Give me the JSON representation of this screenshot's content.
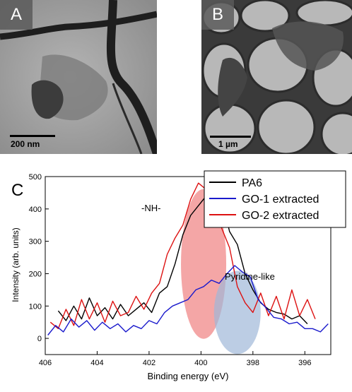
{
  "panels": {
    "a": {
      "label": "A",
      "scale_text": "200 nm"
    },
    "b": {
      "label": "B",
      "scale_text": "1 µm"
    },
    "c": {
      "label": "C"
    }
  },
  "chart_data": {
    "type": "line",
    "xlabel": "Binding energy (eV)",
    "ylabel": "Intensity (arb. units)",
    "xlim": [
      406,
      395
    ],
    "ylim": [
      -50,
      500
    ],
    "x_ticks": [
      406,
      404,
      402,
      400,
      398,
      396
    ],
    "y_ticks": [
      0,
      100,
      200,
      300,
      400,
      500
    ],
    "legend_position": "top-right",
    "annotations": [
      "-NH-",
      "Pyridine-like"
    ],
    "series": [
      {
        "name": "PA6",
        "color": "#000000",
        "x": [
          405.5,
          405.2,
          404.9,
          404.6,
          404.3,
          404.0,
          403.7,
          403.4,
          403.1,
          402.8,
          402.5,
          402.2,
          401.9,
          401.6,
          401.3,
          401.0,
          400.7,
          400.4,
          400.1,
          399.8,
          399.5,
          399.2,
          398.9,
          398.6,
          398.3,
          398.0,
          397.7,
          397.4,
          397.1,
          396.8,
          396.5,
          396.2,
          395.9
        ],
        "values": [
          85,
          55,
          100,
          60,
          125,
          70,
          95,
          60,
          105,
          70,
          90,
          110,
          80,
          140,
          160,
          230,
          320,
          380,
          410,
          440,
          420,
          430,
          330,
          290,
          200,
          150,
          110,
          90,
          80,
          75,
          60,
          70,
          45
        ]
      },
      {
        "name": "GO-1 extracted",
        "color": "#1a1acc",
        "x": [
          405.9,
          405.6,
          405.3,
          405.0,
          404.7,
          404.4,
          404.1,
          403.8,
          403.5,
          403.2,
          402.9,
          402.6,
          402.3,
          402.0,
          401.7,
          401.4,
          401.1,
          400.8,
          400.5,
          400.2,
          399.9,
          399.6,
          399.3,
          399.0,
          398.7,
          398.4,
          398.1,
          397.8,
          397.5,
          397.2,
          396.9,
          396.6,
          396.3,
          396.0,
          395.7,
          395.4,
          395.1
        ],
        "values": [
          10,
          40,
          20,
          60,
          35,
          55,
          25,
          50,
          30,
          45,
          20,
          40,
          30,
          55,
          45,
          80,
          100,
          110,
          120,
          150,
          160,
          180,
          170,
          200,
          225,
          205,
          190,
          120,
          95,
          65,
          60,
          45,
          50,
          30,
          30,
          20,
          45
        ]
      },
      {
        "name": "GO-2 extracted",
        "color": "#dd1111",
        "x": [
          405.8,
          405.5,
          405.2,
          404.9,
          404.6,
          404.3,
          404.0,
          403.7,
          403.4,
          403.1,
          402.8,
          402.5,
          402.2,
          401.9,
          401.6,
          401.3,
          401.0,
          400.7,
          400.4,
          400.1,
          399.8,
          399.5,
          399.2,
          398.9,
          398.6,
          398.3,
          398.0,
          397.7,
          397.4,
          397.1,
          396.8,
          396.5,
          396.2,
          395.9,
          395.6
        ],
        "values": [
          50,
          30,
          90,
          40,
          120,
          60,
          110,
          50,
          115,
          70,
          80,
          130,
          90,
          140,
          170,
          260,
          310,
          350,
          430,
          480,
          460,
          420,
          340,
          280,
          160,
          110,
          80,
          140,
          70,
          130,
          60,
          150,
          70,
          120,
          60
        ]
      }
    ]
  }
}
